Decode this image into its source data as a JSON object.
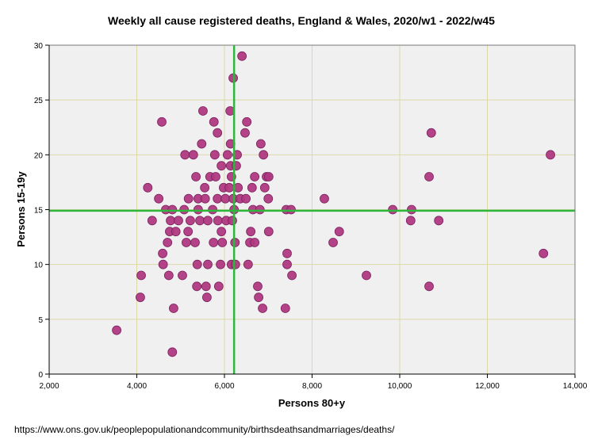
{
  "chart_data": {
    "type": "scatter",
    "title": "Weekly all cause registered deaths, England & Wales, 2020/w1 - 2022/w45",
    "xlabel": "Persons 80+y",
    "ylabel": "Persons 15-19y",
    "xlim": [
      2000,
      14000
    ],
    "ylim": [
      0,
      30
    ],
    "xticks": [
      "2,000",
      "4,000",
      "6,000",
      "8,000",
      "10,000",
      "12,000",
      "14,000"
    ],
    "xtick_values": [
      2000,
      4000,
      6000,
      8000,
      10000,
      12000,
      14000
    ],
    "yticks": [
      "0",
      "5",
      "10",
      "15",
      "20",
      "25",
      "30"
    ],
    "ytick_values": [
      0,
      5,
      10,
      15,
      20,
      25,
      30
    ],
    "grid": true,
    "reference_lines": {
      "x_mean": 6220,
      "y_mean": 14.9
    },
    "colors": {
      "point": "#b0387f",
      "point_edge": "#7a2360",
      "ref_line": "#2db83d",
      "grid": "#ddd8a8",
      "plot_bg": "#f0f0f0"
    },
    "points": [
      [
        3540,
        4
      ],
      [
        4080,
        7
      ],
      [
        4100,
        9
      ],
      [
        4250,
        17
      ],
      [
        4350,
        14
      ],
      [
        4500,
        16
      ],
      [
        4570,
        23
      ],
      [
        4590,
        11
      ],
      [
        4600,
        10
      ],
      [
        4660,
        15
      ],
      [
        4700,
        12
      ],
      [
        4730,
        9
      ],
      [
        4750,
        13
      ],
      [
        4770,
        14
      ],
      [
        4840,
        6
      ],
      [
        4810,
        2
      ],
      [
        4810,
        15
      ],
      [
        4890,
        13
      ],
      [
        4950,
        14
      ],
      [
        5080,
        15
      ],
      [
        5040,
        9
      ],
      [
        5100,
        20
      ],
      [
        5130,
        12
      ],
      [
        5170,
        13
      ],
      [
        5180,
        16
      ],
      [
        5220,
        14
      ],
      [
        5290,
        20
      ],
      [
        5330,
        12
      ],
      [
        5350,
        18
      ],
      [
        5370,
        8
      ],
      [
        5380,
        10
      ],
      [
        5400,
        16
      ],
      [
        5440,
        14
      ],
      [
        5400,
        15
      ],
      [
        5480,
        21
      ],
      [
        5510,
        24
      ],
      [
        5550,
        17
      ],
      [
        5560,
        16
      ],
      [
        5580,
        8
      ],
      [
        5600,
        7
      ],
      [
        5620,
        10
      ],
      [
        5620,
        14
      ],
      [
        5670,
        18
      ],
      [
        5730,
        15
      ],
      [
        5750,
        12
      ],
      [
        5760,
        23
      ],
      [
        5780,
        20
      ],
      [
        5800,
        18
      ],
      [
        5840,
        22
      ],
      [
        5840,
        16
      ],
      [
        5850,
        14
      ],
      [
        5870,
        8
      ],
      [
        5910,
        10
      ],
      [
        5930,
        19
      ],
      [
        5930,
        13
      ],
      [
        5950,
        12
      ],
      [
        5980,
        17
      ],
      [
        6020,
        16
      ],
      [
        6040,
        14
      ],
      [
        6070,
        20
      ],
      [
        6110,
        17
      ],
      [
        6130,
        24
      ],
      [
        6140,
        21
      ],
      [
        6140,
        19
      ],
      [
        6160,
        18
      ],
      [
        6160,
        10
      ],
      [
        6180,
        14
      ],
      [
        6200,
        27
      ],
      [
        6200,
        16
      ],
      [
        6220,
        15
      ],
      [
        6240,
        12
      ],
      [
        6250,
        10
      ],
      [
        6270,
        19
      ],
      [
        6290,
        20
      ],
      [
        6310,
        17
      ],
      [
        6360,
        16
      ],
      [
        6400,
        29
      ],
      [
        6470,
        22
      ],
      [
        6490,
        16
      ],
      [
        6510,
        23
      ],
      [
        6540,
        10
      ],
      [
        6580,
        12
      ],
      [
        6600,
        13
      ],
      [
        6630,
        17
      ],
      [
        6650,
        15
      ],
      [
        6690,
        18
      ],
      [
        6690,
        12
      ],
      [
        6760,
        8
      ],
      [
        6780,
        7
      ],
      [
        6810,
        15
      ],
      [
        6830,
        21
      ],
      [
        6870,
        6
      ],
      [
        6890,
        20
      ],
      [
        6920,
        17
      ],
      [
        6960,
        18
      ],
      [
        7000,
        16
      ],
      [
        7010,
        13
      ],
      [
        7010,
        18
      ],
      [
        7390,
        6
      ],
      [
        7410,
        15
      ],
      [
        7430,
        11
      ],
      [
        7430,
        10
      ],
      [
        7520,
        15
      ],
      [
        7540,
        9
      ],
      [
        8280,
        16
      ],
      [
        8480,
        12
      ],
      [
        8620,
        13
      ],
      [
        9240,
        9
      ],
      [
        9840,
        15
      ],
      [
        10270,
        15
      ],
      [
        10250,
        14
      ],
      [
        10670,
        18
      ],
      [
        10670,
        8
      ],
      [
        10720,
        22
      ],
      [
        10890,
        14
      ],
      [
        13280,
        11
      ],
      [
        13440,
        20
      ]
    ]
  },
  "footer": "https://www.ons.gov.uk/peoplepopulationandcommunity/birthsdeathsandmarriages/deaths/"
}
